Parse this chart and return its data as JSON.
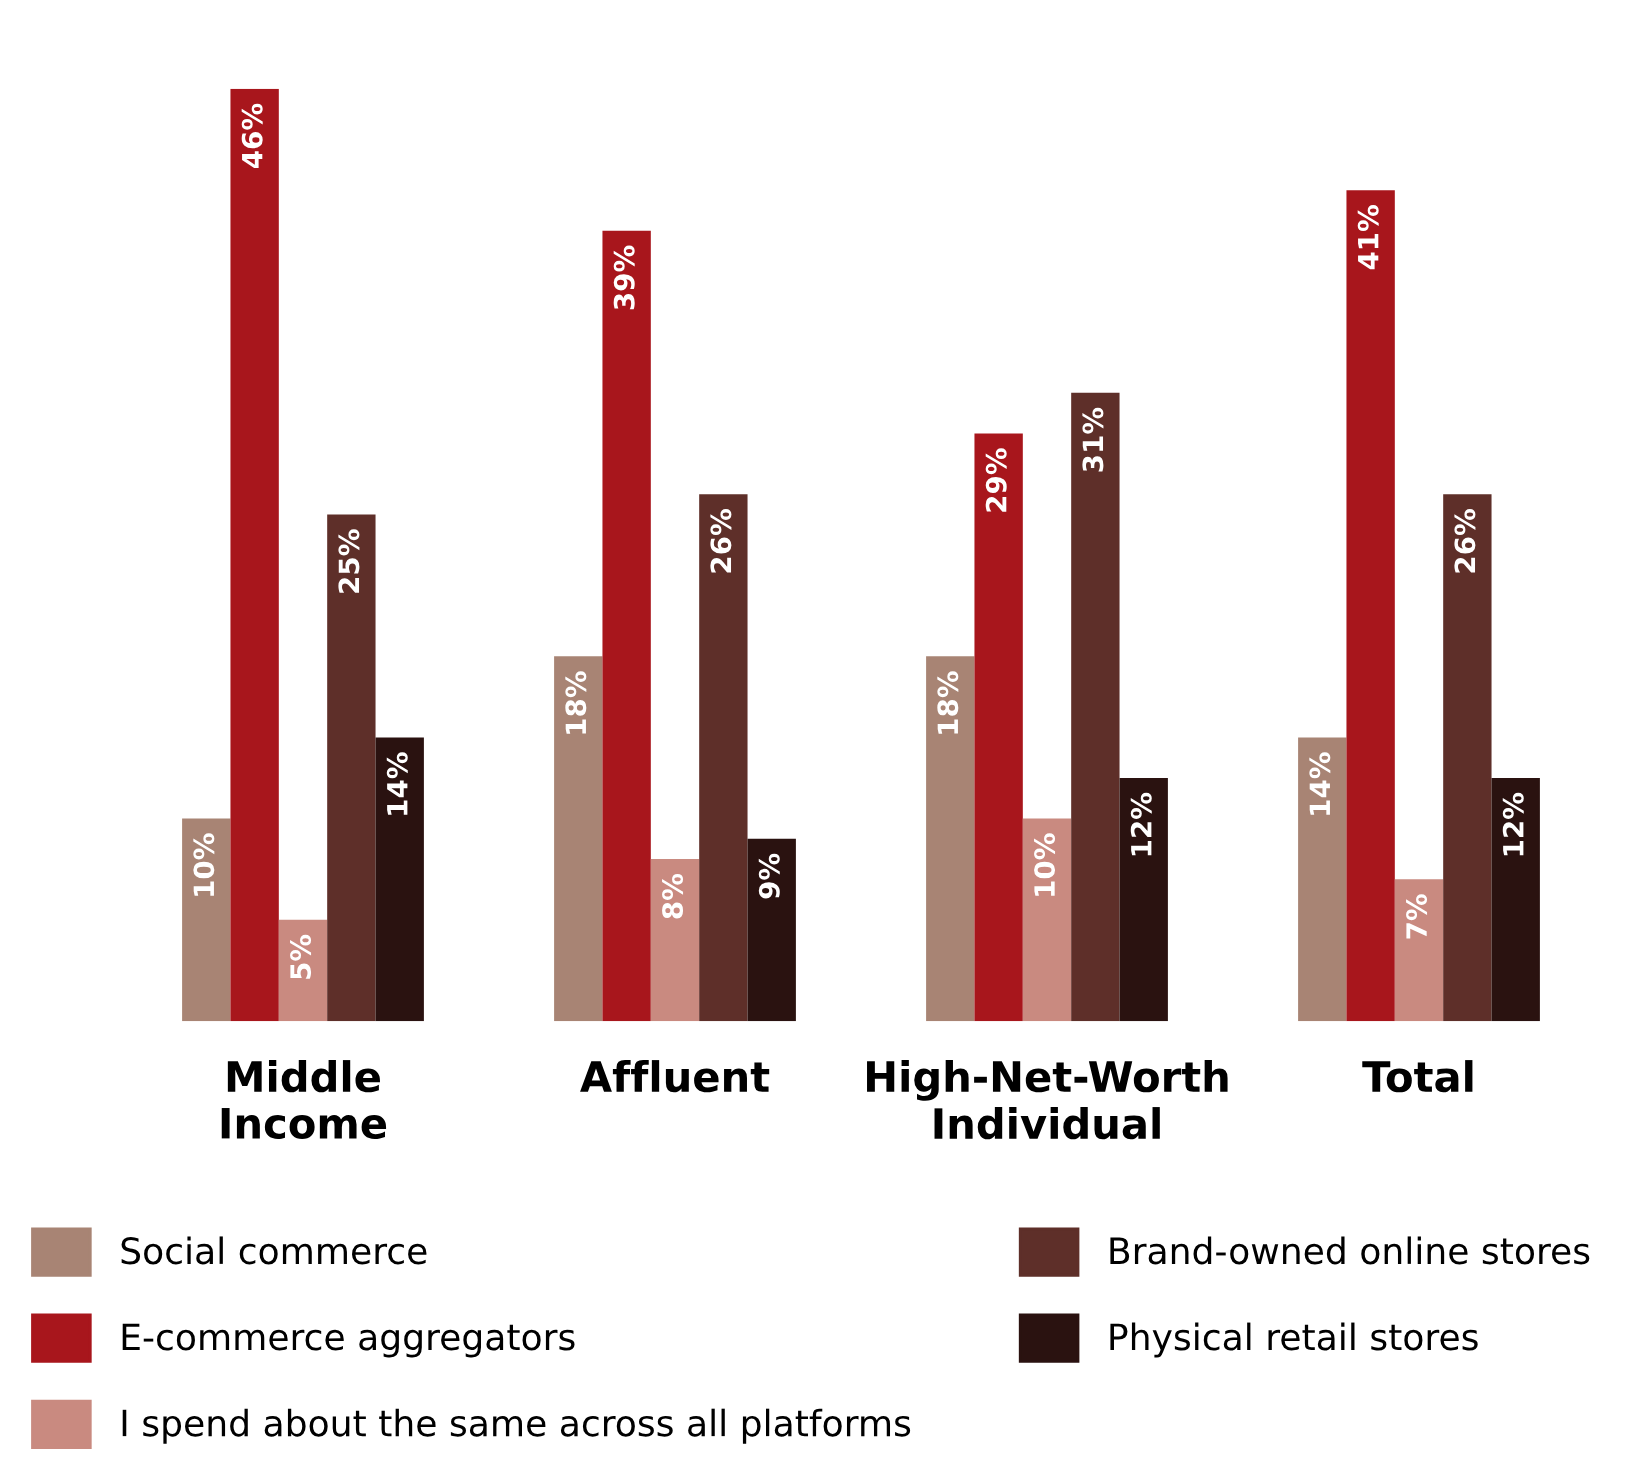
{
  "chart_data": {
    "type": "bar",
    "categories": [
      "Middle\nIncome",
      "Affluent",
      "High-Net-Worth\nIndividual",
      "Total"
    ],
    "series": [
      {
        "name": "Social commerce",
        "color": "#a88474",
        "values": [
          10,
          18,
          18,
          14
        ],
        "value_labels": [
          "10%",
          "18%",
          "18%",
          "14%"
        ]
      },
      {
        "name": "E-commerce aggregators",
        "color": "#a8161c",
        "values": [
          46,
          39,
          29,
          41
        ],
        "value_labels": [
          "46%",
          "39%",
          "29%",
          "41%"
        ]
      },
      {
        "name": "I spend about the same across all platforms",
        "color": "#c98a80",
        "values": [
          5,
          8,
          10,
          7
        ],
        "value_labels": [
          "5%",
          "8%",
          "10%",
          "7%"
        ]
      },
      {
        "name": "Brand-owned online stores",
        "color": "#5e2f29",
        "values": [
          25,
          26,
          31,
          26
        ],
        "value_labels": [
          "25%",
          "26%",
          "31%",
          "26%"
        ]
      },
      {
        "name": "Physical retail stores",
        "color": "#2a1210",
        "values": [
          14,
          9,
          12,
          12
        ],
        "value_labels": [
          "14%",
          "9%",
          "12%",
          "12%"
        ]
      }
    ],
    "legend": "bottom",
    "grid": false
  }
}
